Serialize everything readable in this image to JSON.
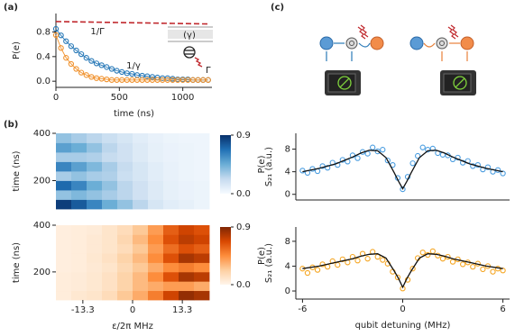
{
  "chart_data": [
    {
      "type": "scatter",
      "panel_label": "(a)",
      "xlabel": "time (ns)",
      "ylabel": "P(e)",
      "annotations": [
        "1/Γ",
        "1/γ",
        "(γ)",
        "Γ"
      ],
      "xlim": [
        0,
        1230
      ],
      "ylim": [
        -0.1,
        1.1
      ],
      "xticks": [
        0,
        500,
        1000
      ],
      "yticks": [
        {
          "value": 0,
          "label": "0.0"
        },
        {
          "value": 0.4,
          "label": "0.4"
        },
        {
          "value": 0.8,
          "label": "0.8"
        }
      ],
      "x": [
        0,
        40,
        80,
        120,
        160,
        200,
        240,
        280,
        320,
        360,
        400,
        440,
        480,
        520,
        560,
        600,
        640,
        680,
        720,
        760,
        800,
        840,
        880,
        920,
        960,
        1000,
        1040,
        1080,
        1120,
        1160,
        1200
      ],
      "series": [
        {
          "color": "#c0282d",
          "style": "dashed",
          "x": [
            0,
            1200
          ],
          "values": [
            0.97,
            0.93
          ]
        },
        {
          "color": "#2a7ab8",
          "style": "markers+line",
          "values": [
            0.85,
            0.745,
            0.65,
            0.57,
            0.5,
            0.44,
            0.38,
            0.33,
            0.29,
            0.26,
            0.23,
            0.2,
            0.17,
            0.15,
            0.13,
            0.12,
            0.1,
            0.09,
            0.08,
            0.07,
            0.06,
            0.05,
            0.05,
            0.04,
            0.03,
            0.03,
            0.03,
            0.02,
            0.02,
            0.02,
            0.02
          ]
        },
        {
          "color": "#f0922e",
          "style": "markers+line",
          "values": [
            0.75,
            0.54,
            0.38,
            0.28,
            0.2,
            0.14,
            0.1,
            0.07,
            0.05,
            0.04,
            0.03,
            0.02,
            0.02,
            0.02,
            0.02,
            0.02,
            0.02,
            0.02,
            0.02,
            0.02,
            0.02,
            0.02,
            0.02,
            0.02,
            0.02,
            0.02,
            0.02,
            0.02,
            0.02,
            0.02,
            0.02
          ]
        }
      ]
    },
    {
      "type": "heatmap",
      "panel_label": "(b)",
      "ylabel": "time (ns)",
      "colormap": "blues",
      "xlim": [
        -20.5,
        20.5
      ],
      "ylim": [
        80,
        400
      ],
      "yticks": [
        200,
        400
      ],
      "clim": [
        0,
        0.9
      ],
      "cticks": [
        {
          "value": 0,
          "label": "0.0"
        },
        {
          "value": 0.9,
          "label": "0.9"
        }
      ],
      "clabel": "P(e)",
      "x": [
        -18.45,
        -14.35,
        -10.25,
        -6.15,
        -2.05,
        2.05,
        6.15,
        10.25,
        14.35,
        18.45
      ],
      "y": [
        100,
        140,
        180,
        220,
        260,
        300,
        340,
        380
      ],
      "z": [
        [
          0.85,
          0.75,
          0.6,
          0.45,
          0.35,
          0.25,
          0.15,
          0.1,
          0.08,
          0.05
        ],
        [
          0.35,
          0.4,
          0.35,
          0.3,
          0.25,
          0.18,
          0.12,
          0.08,
          0.06,
          0.05
        ],
        [
          0.7,
          0.6,
          0.45,
          0.35,
          0.25,
          0.18,
          0.12,
          0.08,
          0.06,
          0.05
        ],
        [
          0.3,
          0.35,
          0.3,
          0.28,
          0.2,
          0.15,
          0.1,
          0.07,
          0.05,
          0.04
        ],
        [
          0.6,
          0.5,
          0.4,
          0.3,
          0.22,
          0.15,
          0.1,
          0.07,
          0.05,
          0.04
        ],
        [
          0.3,
          0.3,
          0.28,
          0.22,
          0.18,
          0.12,
          0.08,
          0.06,
          0.05,
          0.04
        ],
        [
          0.5,
          0.45,
          0.35,
          0.25,
          0.18,
          0.12,
          0.08,
          0.06,
          0.05,
          0.04
        ],
        [
          0.35,
          0.3,
          0.25,
          0.2,
          0.15,
          0.1,
          0.07,
          0.05,
          0.04,
          0.04
        ]
      ]
    },
    {
      "type": "heatmap",
      "ylabel": "time (ns)",
      "xlabel": "ε/2π MHz",
      "colormap": "oranges",
      "xlim": [
        -20.5,
        20.5
      ],
      "ylim": [
        80,
        400
      ],
      "xticks": [
        -13.3,
        0,
        13.3
      ],
      "yticks": [
        200,
        400
      ],
      "clim": [
        0,
        0.9
      ],
      "cticks": [
        {
          "value": 0,
          "label": "0.0"
        },
        {
          "value": 0.9,
          "label": "0.9"
        }
      ],
      "clabel": "P(e)",
      "x": [
        -18.45,
        -14.35,
        -10.25,
        -6.15,
        -2.05,
        2.05,
        6.15,
        10.25,
        14.35,
        18.45
      ],
      "y": [
        100,
        140,
        180,
        220,
        260,
        300,
        340,
        380
      ],
      "z": [
        [
          0.05,
          0.08,
          0.1,
          0.15,
          0.25,
          0.35,
          0.5,
          0.7,
          0.85,
          0.8
        ],
        [
          0.05,
          0.06,
          0.08,
          0.12,
          0.2,
          0.3,
          0.35,
          0.4,
          0.4,
          0.35
        ],
        [
          0.05,
          0.06,
          0.08,
          0.12,
          0.2,
          0.3,
          0.45,
          0.65,
          0.8,
          0.75
        ],
        [
          0.04,
          0.05,
          0.07,
          0.1,
          0.17,
          0.25,
          0.35,
          0.45,
          0.5,
          0.45
        ],
        [
          0.04,
          0.05,
          0.08,
          0.12,
          0.2,
          0.3,
          0.45,
          0.65,
          0.8,
          0.75
        ],
        [
          0.04,
          0.05,
          0.07,
          0.1,
          0.15,
          0.25,
          0.4,
          0.55,
          0.65,
          0.6
        ],
        [
          0.04,
          0.05,
          0.07,
          0.1,
          0.18,
          0.3,
          0.45,
          0.65,
          0.75,
          0.7
        ],
        [
          0.04,
          0.05,
          0.06,
          0.1,
          0.15,
          0.25,
          0.4,
          0.6,
          0.7,
          0.65
        ]
      ]
    },
    {
      "type": "scatter",
      "panel_label": "(c)",
      "ylabel": "S₂₁ (a.u.)",
      "xlim": [
        -6.4,
        6.4
      ],
      "ylim": [
        -1.0,
        10.8
      ],
      "yticks": [
        0,
        4,
        8
      ],
      "x": [
        -6,
        -5.7,
        -5.4,
        -5.1,
        -4.8,
        -4.5,
        -4.2,
        -3.9,
        -3.6,
        -3.3,
        -3,
        -2.7,
        -2.4,
        -2.1,
        -1.8,
        -1.5,
        -1.2,
        -0.9,
        -0.6,
        -0.3,
        0,
        0.3,
        0.6,
        0.9,
        1.2,
        1.5,
        1.8,
        2.1,
        2.4,
        2.7,
        3,
        3.3,
        3.6,
        3.9,
        4.2,
        4.5,
        4.8,
        5.1,
        5.4,
        5.7,
        6
      ],
      "series": [
        {
          "color": "#4a9de0",
          "style": "markers",
          "values": [
            4.2,
            3.8,
            4.5,
            4.1,
            5.0,
            4.7,
            5.6,
            5.2,
            6.1,
            5.8,
            6.9,
            6.4,
            7.5,
            7.2,
            8.3,
            7.6,
            7.9,
            6.0,
            5.2,
            2.9,
            0.9,
            3.1,
            5.5,
            6.8,
            8.3,
            7.9,
            8.1,
            7.3,
            7.0,
            6.9,
            6.2,
            6.5,
            5.6,
            5.9,
            5.0,
            5.2,
            4.4,
            4.8,
            4.0,
            4.3,
            3.7
          ]
        },
        {
          "color": "#111111",
          "style": "line",
          "x": [
            -6,
            -5,
            -4,
            -3,
            -2.5,
            -2,
            -1.5,
            -1,
            -0.5,
            -0.25,
            0,
            0.25,
            0.5,
            1,
            1.5,
            2,
            2.5,
            3,
            4,
            5,
            6
          ],
          "values": [
            4.0,
            4.6,
            5.4,
            6.6,
            7.3,
            7.8,
            7.7,
            6.5,
            3.8,
            2.3,
            1.0,
            2.3,
            3.8,
            6.5,
            7.7,
            7.8,
            7.3,
            6.6,
            5.4,
            4.6,
            4.0
          ]
        }
      ]
    },
    {
      "type": "scatter",
      "ylabel": "S₂₁ (a.u.)",
      "xlabel": "qubit detuning (MHz)",
      "xlim": [
        -6.4,
        6.4
      ],
      "ylim": [
        -1.3,
        10.3
      ],
      "xticks": [
        -6,
        0,
        6
      ],
      "yticks": [
        0,
        4,
        8
      ],
      "x": [
        -6,
        -5.7,
        -5.4,
        -5.1,
        -4.8,
        -4.5,
        -4.2,
        -3.9,
        -3.6,
        -3.3,
        -3,
        -2.7,
        -2.4,
        -2.1,
        -1.8,
        -1.5,
        -1.2,
        -0.9,
        -0.6,
        -0.3,
        0,
        0.3,
        0.6,
        0.9,
        1.2,
        1.5,
        1.8,
        2.1,
        2.4,
        2.7,
        3,
        3.3,
        3.6,
        3.9,
        4.2,
        4.5,
        4.8,
        5.1,
        5.4,
        5.7,
        6
      ],
      "series": [
        {
          "color": "#f5a623",
          "style": "markers",
          "values": [
            3.6,
            2.9,
            3.8,
            3.4,
            4.3,
            3.9,
            4.8,
            4.2,
            5.1,
            4.6,
            5.5,
            4.9,
            6.0,
            5.2,
            6.3,
            5.5,
            5.0,
            4.4,
            3.1,
            2.2,
            0.4,
            1.8,
            3.6,
            5.3,
            6.2,
            5.8,
            6.4,
            5.7,
            5.2,
            5.5,
            4.7,
            5.1,
            4.3,
            4.6,
            3.9,
            4.4,
            3.5,
            4.0,
            3.1,
            3.6,
            3.3
          ]
        },
        {
          "color": "#111111",
          "style": "line",
          "x": [
            -6,
            -5,
            -4,
            -3,
            -2.5,
            -2,
            -1.5,
            -1,
            -0.5,
            -0.25,
            0,
            0.25,
            0.5,
            1,
            1.5,
            2,
            2.5,
            3,
            4,
            5,
            6
          ],
          "values": [
            3.6,
            4.0,
            4.6,
            5.2,
            5.6,
            5.9,
            6.0,
            5.3,
            3.2,
            2.0,
            0.6,
            2.0,
            3.2,
            5.3,
            6.0,
            5.9,
            5.6,
            5.2,
            4.6,
            4.0,
            3.6
          ]
        }
      ]
    }
  ]
}
